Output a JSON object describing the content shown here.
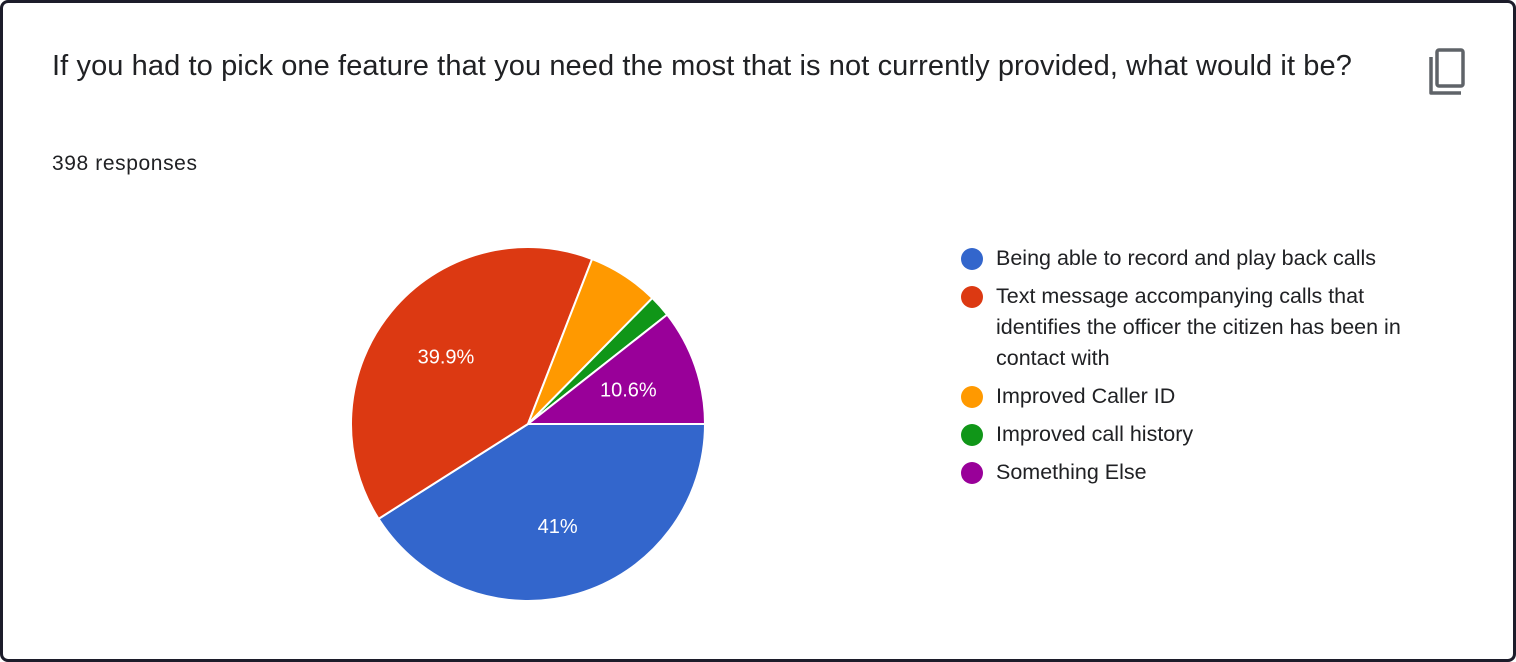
{
  "question": {
    "title": "If you had to pick one feature that you need the most that is not currently provided, what would it be?",
    "responses": "398 responses",
    "copy_icon": "copy-icon"
  },
  "chart_data": {
    "type": "pie",
    "categories": [
      "Being able to record and play back calls",
      "Text message accompanying calls that identifies the officer the citizen has been in contact with",
      "Improved Caller ID",
      "Improved call history",
      "Something Else"
    ],
    "values": [
      41,
      39.9,
      6.5,
      2,
      10.6
    ],
    "colors": [
      "#3366cc",
      "#dc3912",
      "#ff9900",
      "#109618",
      "#990099"
    ],
    "data_labels": [
      "41%",
      "39.9%",
      "",
      "",
      "10.6%"
    ],
    "legend_position": "right",
    "start_angle_deg": 90,
    "direction": "clockwise"
  }
}
